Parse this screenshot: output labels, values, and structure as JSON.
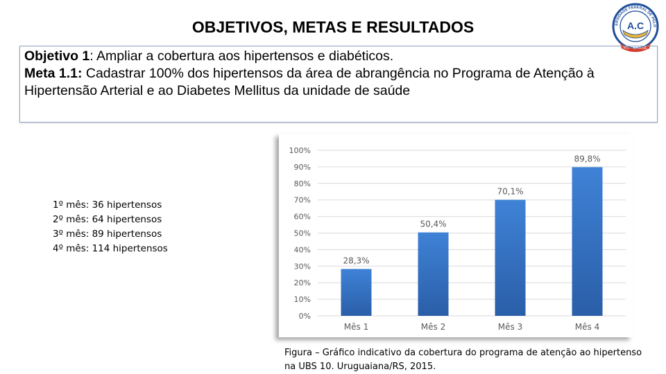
{
  "slide": {
    "title": "OBJETIVOS, METAS E RESULTADOS"
  },
  "logo": {
    "icon": "university-seal-icon",
    "top_text": "UNIVERSIDADE FEDERAL DE PELOTAS",
    "bottom_text": "RS - BRASIL",
    "center_text": "A.C",
    "colors": {
      "primary": "#1f4e9c",
      "accent": "#d23a2a",
      "gold": "#e8b43c"
    }
  },
  "objective": {
    "objective_label": "Objetivo 1",
    "objective_text": ": Ampliar a cobertura aos hipertensos e diabéticos.",
    "goal_label": "Meta 1.1:",
    "goal_text": " Cadastrar 100% dos hipertensos da área de abrangência no Programa de Atenção à Hipertensão Arterial e ao Diabetes Mellitus da unidade de saúde"
  },
  "monthly_counts": [
    "1º mês: 36 hipertensos",
    "2º mês: 64 hipertensos",
    "3º mês: 89 hipertensos",
    "4º mês: 114 hipertensos"
  ],
  "chart_data": {
    "type": "bar",
    "title": "",
    "xlabel": "",
    "ylabel": "",
    "categories": [
      "Mês 1",
      "Mês 2",
      "Mês 3",
      "Mês 4"
    ],
    "values": [
      28.3,
      50.4,
      70.1,
      89.8
    ],
    "data_labels": [
      "28,3%",
      "50,4%",
      "70,1%",
      "89,8%"
    ],
    "ylim": [
      0,
      100
    ],
    "yticks": [
      "0%",
      "10%",
      "20%",
      "30%",
      "40%",
      "50%",
      "60%",
      "70%",
      "80%",
      "90%",
      "100%"
    ],
    "grid": true,
    "legend": "none",
    "colors": {
      "bar": "#3a78c9",
      "bar_dark": "#2a5ea8",
      "grid": "#d9d9d9",
      "text": "#595959"
    }
  },
  "caption": "Figura – Gráfico indicativo da cobertura do programa de atenção ao hipertenso na UBS 10. Uruguaiana/RS, 2015."
}
